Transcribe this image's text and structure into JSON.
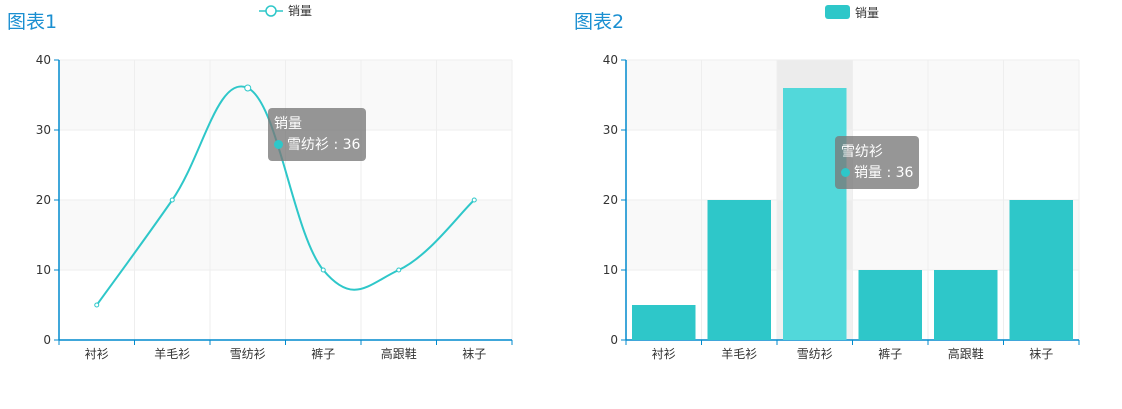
{
  "charts": [
    {
      "title": "图表1",
      "legend": [
        "销量"
      ],
      "tooltip": {
        "header": "销量",
        "row_label": "雪纺衫 : 36"
      }
    },
    {
      "title": "图表2",
      "legend": [
        "销量"
      ],
      "tooltip": {
        "header": "雪纺衫",
        "row_label": "销量 : 36"
      }
    }
  ],
  "colors": {
    "series": "#2ec7c9",
    "highlight": "#52d8da",
    "axis": "#008acd",
    "title": "#1a8fd1"
  },
  "chart_data": [
    {
      "type": "line",
      "smooth": true,
      "title": "图表1",
      "categories": [
        "衬衫",
        "羊毛衫",
        "雪纺衫",
        "裤子",
        "高跟鞋",
        "袜子"
      ],
      "series": [
        {
          "name": "销量",
          "values": [
            5,
            20,
            36,
            10,
            10,
            20
          ]
        }
      ],
      "ylim": [
        0,
        40
      ],
      "yticks": [
        0,
        10,
        20,
        30,
        40
      ],
      "grid": true,
      "legend": "top-center",
      "highlight_index": 2
    },
    {
      "type": "bar",
      "title": "图表2",
      "categories": [
        "衬衫",
        "羊毛衫",
        "雪纺衫",
        "裤子",
        "高跟鞋",
        "袜子"
      ],
      "series": [
        {
          "name": "销量",
          "values": [
            5,
            20,
            36,
            10,
            10,
            20
          ]
        }
      ],
      "ylim": [
        0,
        40
      ],
      "yticks": [
        0,
        10,
        20,
        30,
        40
      ],
      "grid": true,
      "legend": "top-center",
      "highlight_index": 2
    }
  ]
}
